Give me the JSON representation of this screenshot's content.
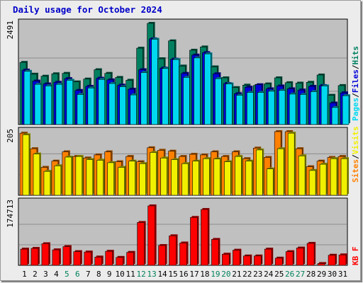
{
  "title": "Daily usage for October 2024",
  "colors": {
    "hits": "#008060",
    "files": "#0000d8",
    "pages": "#00d8f0",
    "visits": "#f0f000",
    "sites": "#ff8000",
    "kbytes": "#ff0000",
    "panel_bg": "#c0c0c0",
    "grid": "#8c8c8c"
  },
  "chart_data": [
    {
      "type": "bar",
      "title": "Daily usage for October 2024",
      "ymax_label": "2491",
      "ylim": [
        0,
        2491
      ],
      "legend": [
        "Hits",
        "Files",
        "Pages"
      ],
      "legend_placement": "right-vertical",
      "categories": [
        "1",
        "2",
        "3",
        "4",
        "5",
        "6",
        "7",
        "8",
        "9",
        "10",
        "11",
        "12",
        "13",
        "14",
        "15",
        "16",
        "17",
        "18",
        "19",
        "20",
        "21",
        "22",
        "23",
        "24",
        "25",
        "26",
        "27",
        "28",
        "29",
        "30",
        "31"
      ],
      "series": [
        {
          "name": "Hits",
          "values": [
            1530,
            1240,
            1190,
            1250,
            1260,
            1050,
            1120,
            1350,
            1260,
            1160,
            1090,
            1880,
            2491,
            1620,
            2060,
            1440,
            1830,
            1910,
            1420,
            1150,
            910,
            970,
            960,
            1000,
            1150,
            1030,
            1020,
            1040,
            1220,
            720,
            960
          ]
        },
        {
          "name": "Files",
          "values": [
            1340,
            1070,
            1000,
            1040,
            1130,
            840,
            940,
            1140,
            1100,
            970,
            870,
            1350,
            2110,
            1390,
            1610,
            1260,
            1710,
            1770,
            1250,
            1010,
            760,
            920,
            980,
            880,
            950,
            880,
            850,
            940,
            960,
            530,
            780
          ]
        },
        {
          "name": "Pages",
          "values": [
            1310,
            990,
            950,
            990,
            1090,
            740,
            900,
            1110,
            1010,
            930,
            730,
            1280,
            2100,
            1380,
            1600,
            1160,
            1640,
            1740,
            1130,
            1000,
            720,
            790,
            790,
            820,
            840,
            750,
            740,
            810,
            950,
            420,
            710
          ]
        }
      ]
    },
    {
      "type": "bar",
      "ymax_label": "205",
      "ylim": [
        0,
        205
      ],
      "legend": [
        "Sites",
        "Visits"
      ],
      "legend_placement": "right-vertical",
      "categories": [
        "1",
        "2",
        "3",
        "4",
        "5",
        "6",
        "7",
        "8",
        "9",
        "10",
        "11",
        "12",
        "13",
        "14",
        "15",
        "16",
        "17",
        "18",
        "19",
        "20",
        "21",
        "22",
        "23",
        "24",
        "25",
        "26",
        "27",
        "28",
        "29",
        "30",
        "31"
      ],
      "series": [
        {
          "name": "Sites",
          "values": [
            200,
            150,
            90,
            110,
            140,
            125,
            120,
            130,
            140,
            108,
            125,
            108,
            153,
            145,
            142,
            125,
            132,
            130,
            140,
            125,
            140,
            118,
            152,
            122,
            205,
            205,
            150,
            92,
            110,
            122,
            125
          ]
        },
        {
          "name": "Visits",
          "values": [
            195,
            133,
            77,
            95,
            123,
            125,
            115,
            113,
            105,
            90,
            110,
            102,
            138,
            120,
            115,
            102,
            110,
            118,
            117,
            108,
            125,
            110,
            146,
            85,
            150,
            200,
            127,
            80,
            100,
            118,
            118
          ]
        }
      ]
    },
    {
      "type": "bar",
      "ymax_label": "174713",
      "ylim": [
        0,
        174713
      ],
      "legend": [
        "KB F"
      ],
      "legend_placement": "right-vertical",
      "categories": [
        "1",
        "2",
        "3",
        "4",
        "5",
        "6",
        "7",
        "8",
        "9",
        "10",
        "11",
        "12",
        "13",
        "14",
        "15",
        "16",
        "17",
        "18",
        "19",
        "20",
        "21",
        "22",
        "23",
        "24",
        "25",
        "26",
        "27",
        "28",
        "29",
        "30",
        "31"
      ],
      "series": [
        {
          "name": "KB F",
          "values": [
            45000,
            47000,
            60000,
            43000,
            52000,
            38000,
            37000,
            23000,
            39000,
            22000,
            36000,
            119000,
            165000,
            55000,
            82000,
            62000,
            133000,
            155000,
            72000,
            31000,
            42000,
            26000,
            26000,
            45000,
            20000,
            38000,
            48000,
            61000,
            5000,
            28000,
            29000
          ]
        }
      ]
    }
  ],
  "x_labels": {
    "days": [
      "1",
      "2",
      "3",
      "4",
      "5",
      "6",
      "7",
      "8",
      "9",
      "10",
      "11",
      "12",
      "13",
      "14",
      "15",
      "16",
      "17",
      "18",
      "19",
      "20",
      "21",
      "22",
      "23",
      "24",
      "25",
      "26",
      "27",
      "28",
      "29",
      "30",
      "31"
    ],
    "weekend_days": [
      "5",
      "6",
      "12",
      "13",
      "19",
      "20",
      "26",
      "27"
    ]
  },
  "legend_text": {
    "top": [
      "Pages",
      "/",
      "Files",
      "/",
      "Hits"
    ],
    "mid": [
      "Sites",
      "/",
      "Visits"
    ],
    "bottom": [
      "KB F"
    ]
  }
}
